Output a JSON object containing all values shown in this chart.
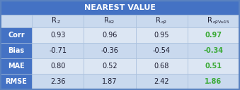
{
  "title": "NEAREST VALUE",
  "col_subs": [
    "Z",
    "K2",
    "q2",
    "q2Vu15"
  ],
  "row_headers": [
    "Corr",
    "Bias",
    "MAE",
    "RMSE"
  ],
  "data": [
    [
      0.93,
      0.96,
      0.95,
      0.97
    ],
    [
      -0.71,
      -0.36,
      -0.54,
      -0.34
    ],
    [
      0.8,
      0.52,
      0.68,
      0.51
    ],
    [
      2.36,
      1.87,
      2.42,
      1.86
    ]
  ],
  "highlight_col": 3,
  "highlight_color": "#3aaa35",
  "title_bg": "#4472c4",
  "title_fg": "#ffffff",
  "header_bg": "#c9d9ee",
  "row_header_bg": "#4472c4",
  "row_header_fg": "#ffffff",
  "cell_bg_light": "#dce6f3",
  "cell_bg_dark": "#c9d9ee",
  "border_color": "#5a82c0",
  "inner_line_color": "#a8bfdc",
  "text_color": "#1a1a2e",
  "title_fontsize": 8,
  "header_fontsize": 7,
  "cell_fontsize": 7,
  "row_header_fontsize": 7
}
